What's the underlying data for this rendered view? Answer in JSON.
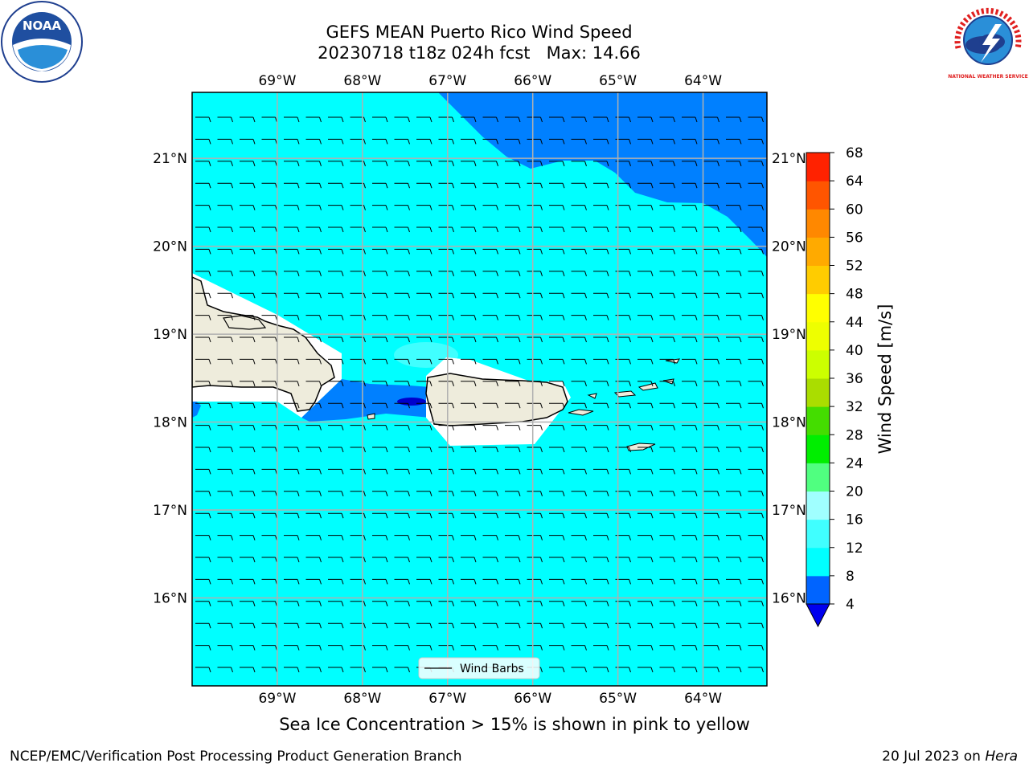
{
  "title_line1": "GEFS MEAN Puerto Rico Wind Speed",
  "title_line2": "20230718 t18z 024h fcst   Max: 14.66",
  "map": {
    "lon_range": [
      -70.0,
      -63.25
    ],
    "lat_range": [
      15.0,
      21.75
    ],
    "lon_ticks": [
      {
        "value": -69,
        "label": "69°W"
      },
      {
        "value": -68,
        "label": "68°W"
      },
      {
        "value": -67,
        "label": "67°W"
      },
      {
        "value": -66,
        "label": "66°W"
      },
      {
        "value": -65,
        "label": "65°W"
      },
      {
        "value": -64,
        "label": "64°W"
      }
    ],
    "lat_ticks": [
      {
        "value": 21,
        "label": "21°N"
      },
      {
        "value": 20,
        "label": "20°N"
      },
      {
        "value": 19,
        "label": "19°N"
      },
      {
        "value": 18,
        "label": "18°N"
      },
      {
        "value": 17,
        "label": "17°N"
      },
      {
        "value": 16,
        "label": "16°N"
      }
    ],
    "gridlines": true,
    "barb_direction": "easterly"
  },
  "legend": {
    "label": "Wind Barbs",
    "position": "bottom-center"
  },
  "colorbar": {
    "label": "Wind Speed [m/s]",
    "ticks": [
      4,
      8,
      12,
      16,
      20,
      24,
      28,
      32,
      36,
      40,
      44,
      48,
      52,
      56,
      60,
      64,
      68
    ],
    "extend": "min",
    "colors": [
      "#0064ff",
      "#00ffff",
      "#40ffff",
      "#a0ffff",
      "#50ff80",
      "#00ee00",
      "#44dd00",
      "#aadd00",
      "#ccff00",
      "#eeff00",
      "#ffff00",
      "#ffcc00",
      "#ffaa00",
      "#ff8800",
      "#ff5500",
      "#ff2200"
    ],
    "under_color": "#0000ee"
  },
  "field_colors": {
    "land": "#eeecdc",
    "ocean_8_12": "#00ffff",
    "ocean_4_8": "#0080ff",
    "ocean_lt4": "#0000cc",
    "ocean_12_16": "#40ffff"
  },
  "footnote": "Sea Ice Concentration > 15% is shown in pink to yellow",
  "credit_left": "NCEP/EMC/Verification Post Processing Product Generation Branch",
  "credit_right_date": "20 Jul 2023 on ",
  "credit_right_host": "Hera",
  "logos": {
    "left": {
      "icon": "noaa-logo",
      "text": "NOAA"
    },
    "right": {
      "icon": "nws-logo",
      "text": "NATIONAL WEATHER SERVICE"
    }
  }
}
